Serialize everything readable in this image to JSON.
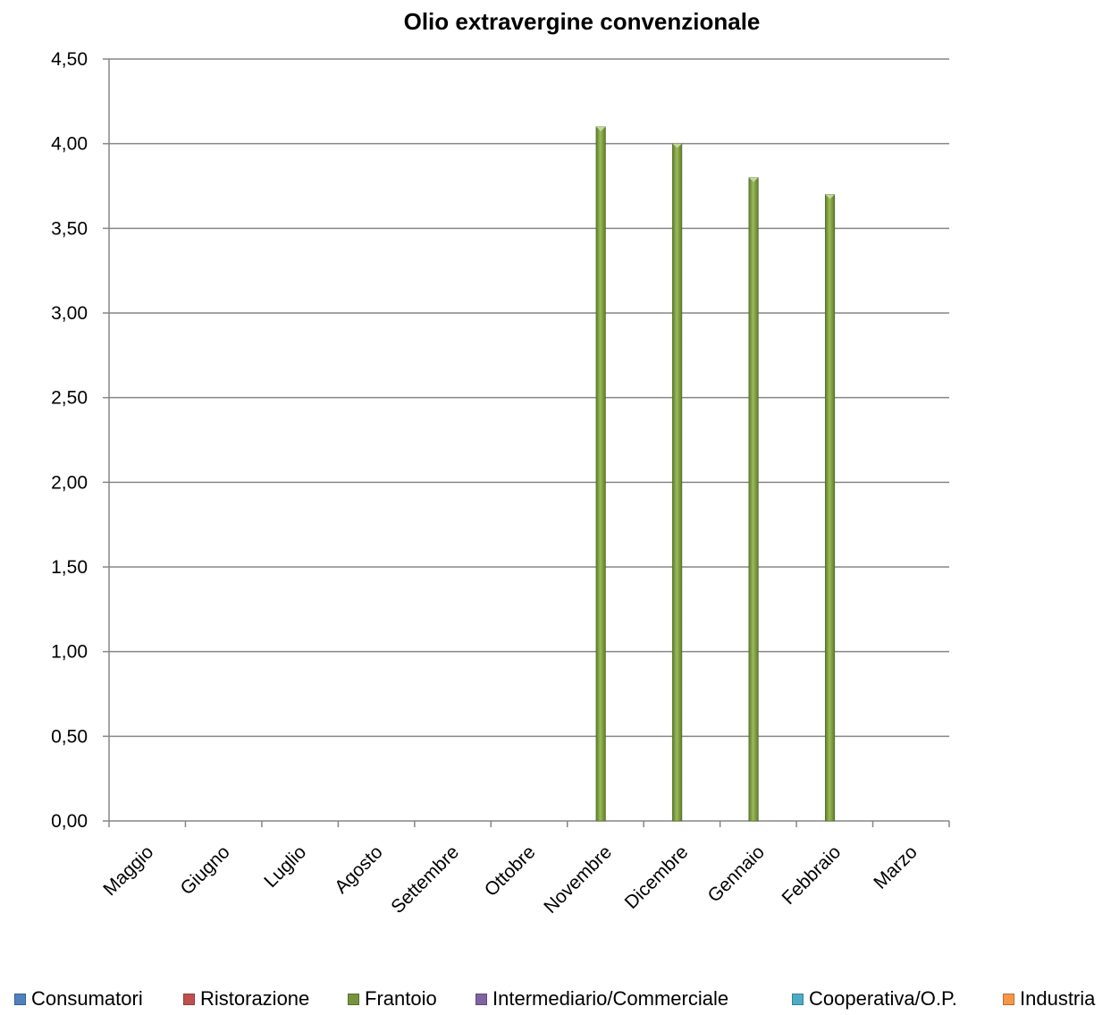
{
  "chart_data": {
    "type": "bar",
    "title": "Olio extravergine convenzionale",
    "xlabel": "",
    "ylabel": "",
    "categories": [
      "Maggio",
      "Giugno",
      "Luglio",
      "Agosto",
      "Settembre",
      "Ottobre",
      "Novembre",
      "Dicembre",
      "Gennaio",
      "Febbraio",
      "Marzo"
    ],
    "ylim": [
      0,
      4.5
    ],
    "yticks": [
      "0,00",
      "0,50",
      "1,00",
      "1,50",
      "2,00",
      "2,50",
      "3,00",
      "3,50",
      "4,00",
      "4,50"
    ],
    "ytick_values": [
      0,
      0.5,
      1,
      1.5,
      2,
      2.5,
      3,
      3.5,
      4,
      4.5
    ],
    "grid": true,
    "legend_position": "bottom",
    "series": [
      {
        "name": "Consumatori",
        "color": "#4F81BD",
        "values": [
          null,
          null,
          null,
          null,
          null,
          null,
          null,
          null,
          null,
          null,
          null
        ]
      },
      {
        "name": "Ristorazione",
        "color": "#C0504D",
        "values": [
          null,
          null,
          null,
          null,
          null,
          null,
          null,
          null,
          null,
          null,
          null
        ]
      },
      {
        "name": "Frantoio",
        "color": "#77933C",
        "values": [
          null,
          null,
          null,
          null,
          null,
          null,
          4.1,
          4.0,
          3.8,
          3.7,
          null
        ]
      },
      {
        "name": "Intermediario/Commerciale",
        "color": "#8064A2",
        "values": [
          null,
          null,
          null,
          null,
          null,
          null,
          null,
          null,
          null,
          null,
          null
        ]
      },
      {
        "name": "Cooperativa/O.P.",
        "color": "#4BACC6",
        "values": [
          null,
          null,
          null,
          null,
          null,
          null,
          null,
          null,
          null,
          null,
          null
        ]
      },
      {
        "name": "Industria",
        "color": "#F79646",
        "values": [
          null,
          null,
          null,
          null,
          null,
          null,
          null,
          null,
          null,
          null,
          null
        ]
      }
    ]
  }
}
